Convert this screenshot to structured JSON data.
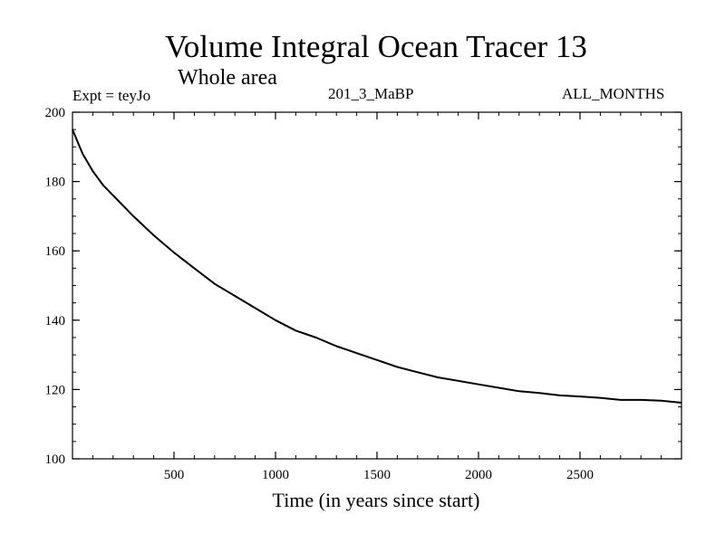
{
  "chart_data": {
    "type": "line",
    "title": "Volume Integral Ocean Tracer 13",
    "subtitle": "Whole area",
    "annotations": {
      "left": "Expt = teyJo",
      "center": "201_3_MaBP",
      "right": "ALL_MONTHS"
    },
    "xlabel": "Time (in years since start)",
    "ylabel": "",
    "xlim": [
      0,
      3000
    ],
    "ylim": [
      100,
      200
    ],
    "xticks": [
      500,
      1000,
      1500,
      2000,
      2500
    ],
    "yticks": [
      100,
      120,
      140,
      160,
      180,
      200
    ],
    "grid": false,
    "series": [
      {
        "x": [
          0,
          50,
          100,
          150,
          200,
          300,
          400,
          500,
          600,
          700,
          800,
          900,
          1000,
          1100,
          1200,
          1300,
          1400,
          1500,
          1600,
          1700,
          1800,
          1900,
          2000,
          2100,
          2200,
          2300,
          2400,
          2500,
          2600,
          2700,
          2800,
          2900,
          3000
        ],
        "y": [
          195,
          188,
          183,
          179,
          176,
          170,
          164.5,
          159.5,
          155,
          150.5,
          147,
          143.5,
          140,
          137,
          135,
          132.5,
          130.5,
          128.5,
          126.5,
          125,
          123.5,
          122.5,
          121.5,
          120.5,
          119.5,
          119,
          118.3,
          118,
          117.6,
          117,
          117,
          116.8,
          116.2
        ]
      }
    ]
  }
}
